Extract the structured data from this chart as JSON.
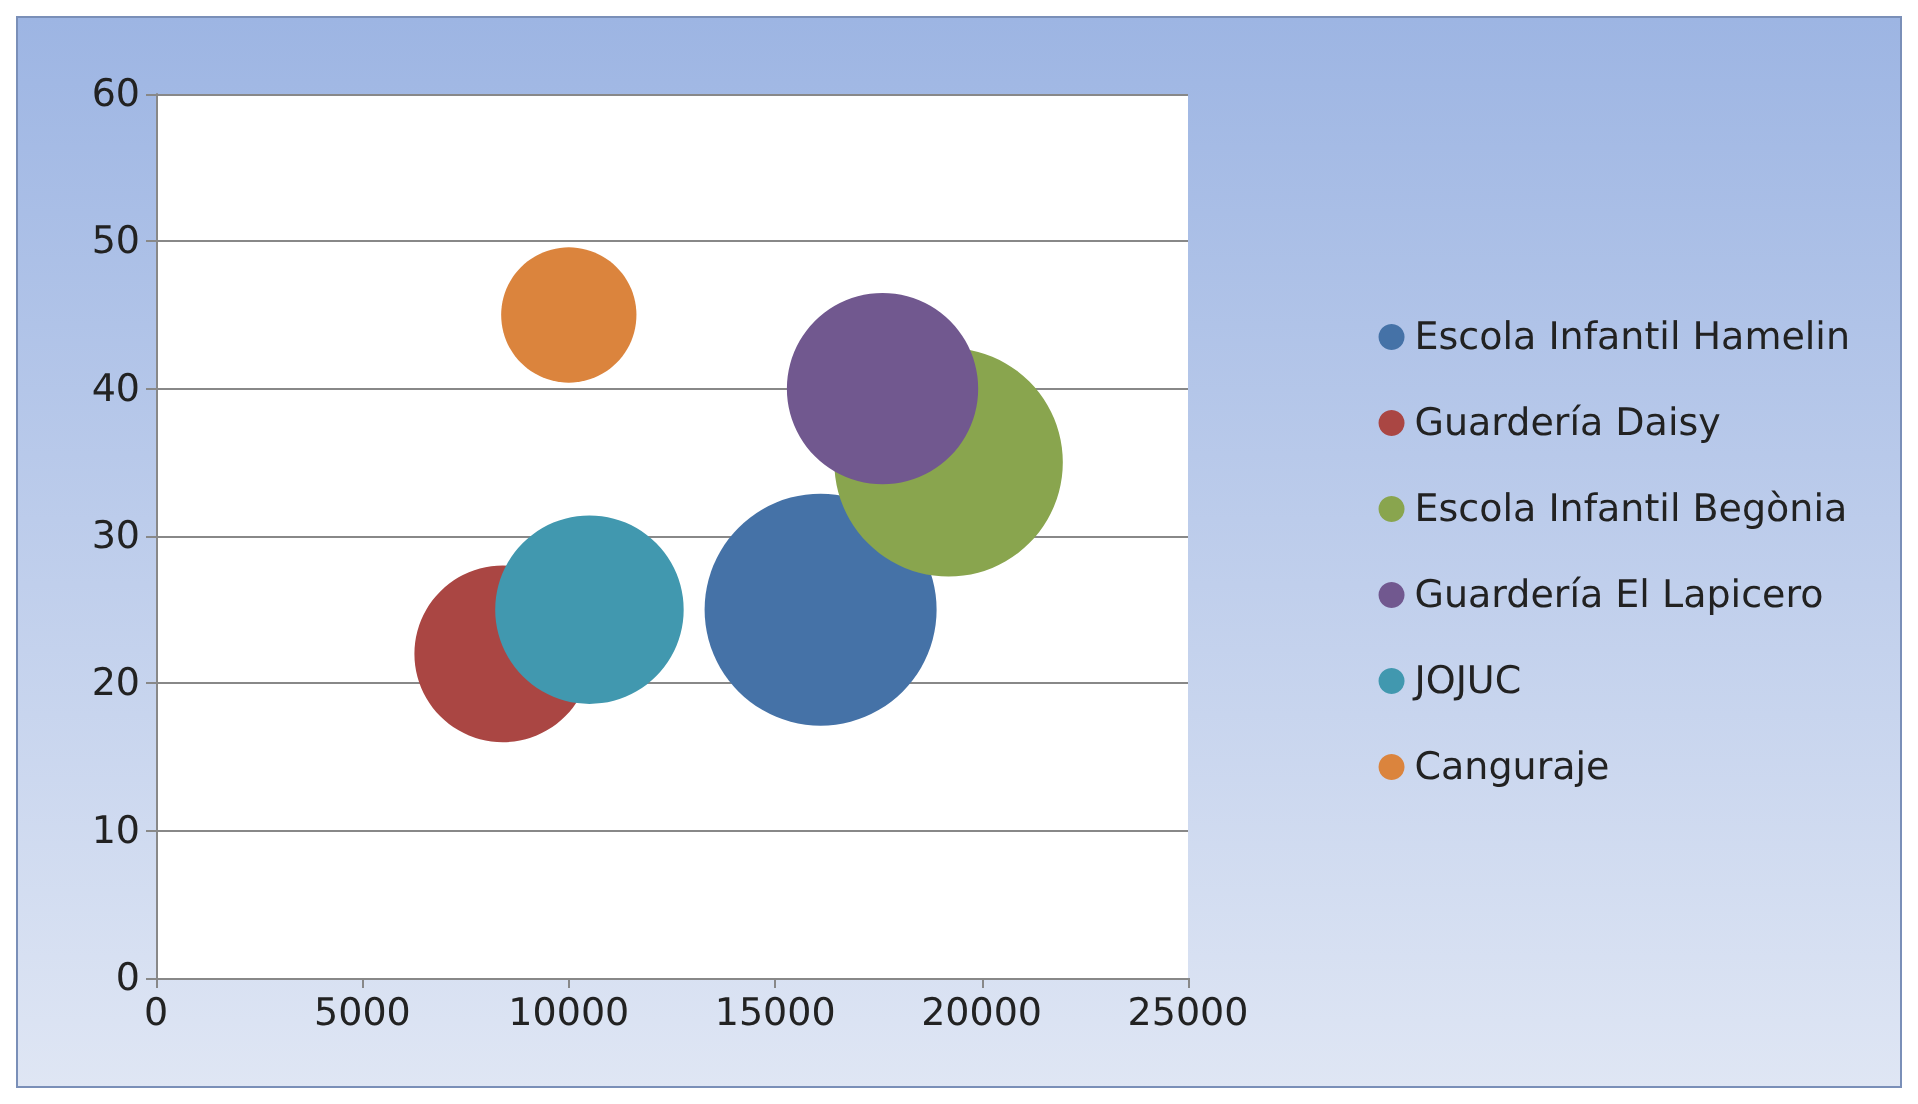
{
  "chart_data": {
    "type": "bubble",
    "xlim": [
      0,
      25000
    ],
    "xticks": [
      0,
      5000,
      10000,
      15000,
      20000,
      25000
    ],
    "ylim": [
      0,
      60
    ],
    "yticks": [
      0,
      10,
      20,
      30,
      40,
      50,
      60
    ],
    "grid": "y",
    "legend": "right",
    "marker": "circle",
    "series": [
      {
        "name": "Escola Infantil Hamelin",
        "color": "#4572a7",
        "x": [
          16100
        ],
        "values": [
          25
        ],
        "sizes": [
          1
        ]
      },
      {
        "name": "Guardería Daisy",
        "color": "#aa4643",
        "x": [
          8400
        ],
        "values": [
          22
        ],
        "sizes": [
          0.58
        ]
      },
      {
        "name": "Escola Infantil Begònia",
        "color": "#89a54e",
        "x": [
          19200
        ],
        "values": [
          35
        ],
        "sizes": [
          0.97
        ]
      },
      {
        "name": "Guardería El Lapicero",
        "color": "#71588f",
        "x": [
          17600
        ],
        "values": [
          40
        ],
        "sizes": [
          0.68
        ]
      },
      {
        "name": "JOJUC",
        "color": "#4198af",
        "x": [
          10500
        ],
        "values": [
          25
        ],
        "sizes": [
          0.66
        ]
      },
      {
        "name": "Canguraje",
        "color": "#db843d",
        "x": [
          10000
        ],
        "values": [
          45
        ],
        "sizes": [
          0.34
        ]
      }
    ]
  }
}
